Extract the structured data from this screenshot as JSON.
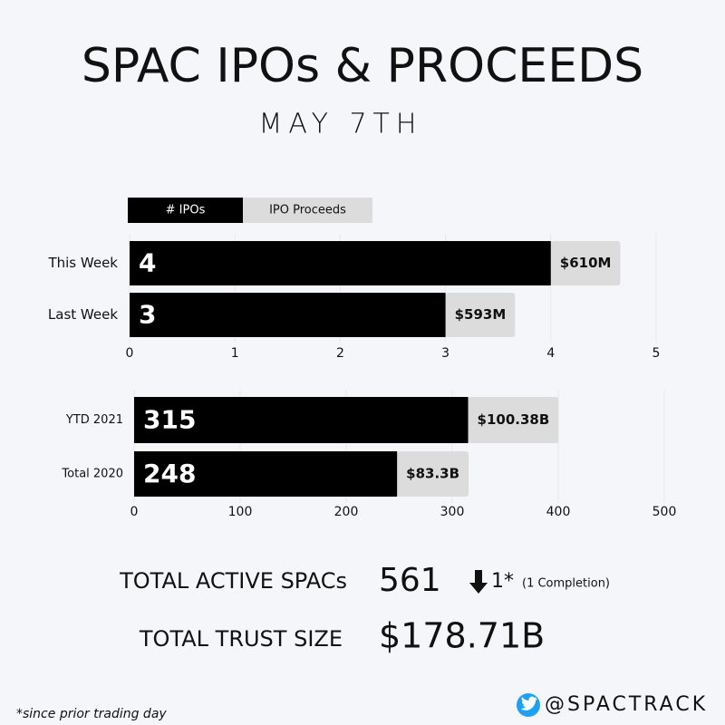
{
  "header": {
    "title": "SPAC IPOs & PROCEEDS",
    "subtitle": "MAY 7TH"
  },
  "chart_data": [
    {
      "type": "bar",
      "orientation": "horizontal",
      "categories": [
        "This Week",
        "Last Week"
      ],
      "series": [
        {
          "name": "# IPOs",
          "color": "#000000",
          "values": [
            4,
            3
          ]
        },
        {
          "name": "IPO Proceeds",
          "color": "#dcdcdc",
          "values": [
            610,
            593
          ],
          "value_labels": [
            "$610M",
            "$593M"
          ]
        }
      ],
      "xlim": [
        0,
        5
      ],
      "xticks": [
        0,
        1,
        2,
        3,
        4,
        5
      ],
      "grid": true,
      "legend": "top-left"
    },
    {
      "type": "bar",
      "orientation": "horizontal",
      "categories": [
        "YTD 2021",
        "Total 2020"
      ],
      "series": [
        {
          "name": "# IPOs",
          "color": "#000000",
          "values": [
            315,
            248
          ]
        },
        {
          "name": "IPO Proceeds",
          "color": "#dcdcdc",
          "values": [
            100.38,
            83.3
          ],
          "value_labels": [
            "$100.38B",
            "$83.3B"
          ]
        }
      ],
      "xlim": [
        0,
        500
      ],
      "xticks": [
        0,
        100,
        200,
        300,
        400,
        500
      ],
      "grid": true
    }
  ],
  "stats": {
    "active_label": "TOTAL ACTIVE SPACs",
    "active_value": "561",
    "change": "1*",
    "change_note": "(1 Completion)",
    "trust_label": "TOTAL TRUST SIZE",
    "trust_value": "$178.71B"
  },
  "footer": {
    "footnote": "*since prior trading day",
    "handle": "@SPACTRACK"
  }
}
